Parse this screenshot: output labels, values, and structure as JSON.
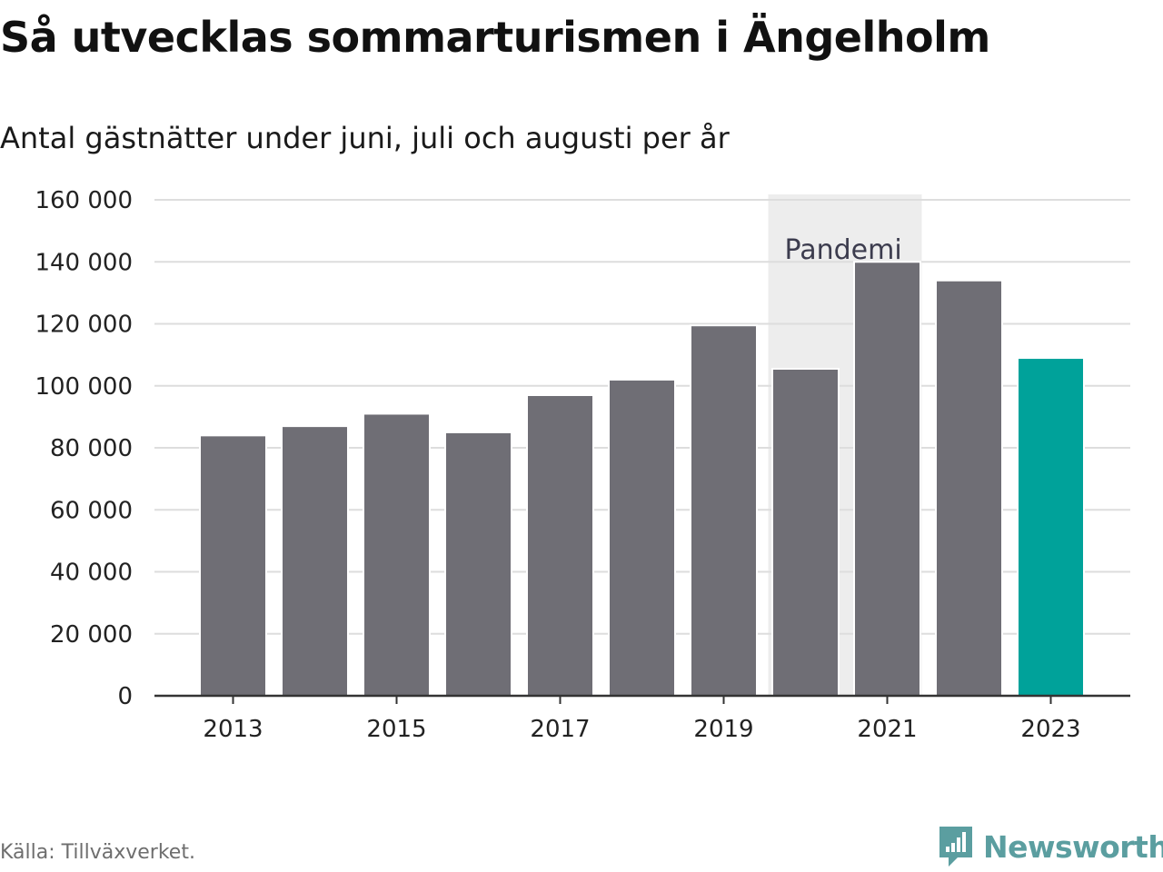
{
  "title": "Så utvecklas sommarturismen i Ängelholm",
  "subtitle": "Antal gästnätter under juni, juli och augusti per år",
  "source": "Källa: Tillväxverket.",
  "brand": {
    "name": "Newsworthy",
    "icon": "newsworthy-logo-icon",
    "color": "#5b9ea0"
  },
  "chart_data": {
    "type": "bar",
    "categories": [
      "2013",
      "2014",
      "2015",
      "2016",
      "2017",
      "2018",
      "2019",
      "2020",
      "2021",
      "2022",
      "2023"
    ],
    "values": [
      84000,
      87000,
      91000,
      85000,
      97000,
      102000,
      119500,
      105500,
      140000,
      134000,
      109000
    ],
    "highlight_category": "2023",
    "colors": {
      "bar": "#6f6e75",
      "highlight": "#00a29a",
      "grid": "#dddddd",
      "axis": "#333333",
      "annotation_band": "#ededed"
    },
    "ylim": [
      0,
      160000
    ],
    "yticks": [
      0,
      20000,
      40000,
      60000,
      80000,
      100000,
      120000,
      140000,
      160000
    ],
    "ytick_labels": [
      "0",
      "20 000",
      "40 000",
      "60 000",
      "80 000",
      "100 000",
      "120 000",
      "140 000",
      "160 000"
    ],
    "xtick_labels": [
      "2013",
      "2015",
      "2017",
      "2019",
      "2021",
      "2023"
    ],
    "xlabel": "",
    "ylabel": "",
    "grid": true,
    "annotation": {
      "label": "Pandemi",
      "from": "2020",
      "to": "2021"
    }
  }
}
